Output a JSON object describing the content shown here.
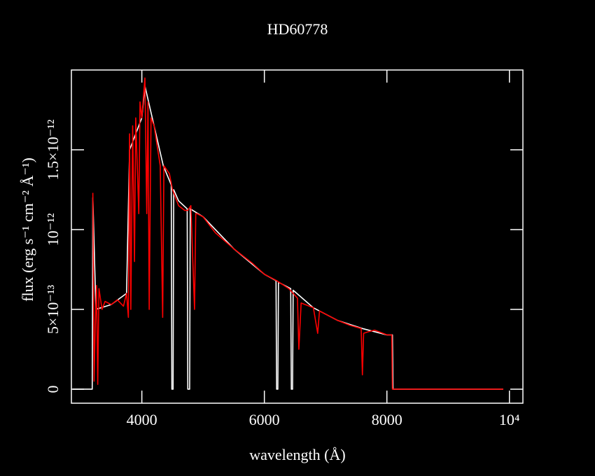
{
  "chart_data": {
    "type": "line",
    "title": "HD60778",
    "x_label": "wavelength (Å)",
    "y_label": "flux (erg s⁻¹ cm⁻² Å⁻¹)",
    "xlim": [
      2850,
      10220
    ],
    "ylim": [
      -8.8e-14,
      2e-12
    ],
    "xticks": [
      4000,
      6000,
      8000,
      {
        "value": 10000,
        "label": "10⁴"
      }
    ],
    "yticks": [
      0,
      {
        "value": 5e-13,
        "label": "5×10⁻¹³"
      },
      {
        "value": 1e-12,
        "label": "10⁻¹²"
      },
      {
        "value": 1.5e-12,
        "label": "1.5×10⁻¹²"
      }
    ],
    "series": [
      {
        "color": "#ffffff",
        "x": [
          2870,
          3190,
          3200,
          3250,
          3500,
          3750,
          3800,
          3900,
          4000,
          4050,
          4200,
          4350,
          4480,
          4490,
          4510,
          4520,
          4600,
          4740,
          4750,
          4780,
          4790,
          5000,
          5500,
          6000,
          6190,
          6200,
          6220,
          6230,
          6430,
          6440,
          6460,
          6470,
          6800,
          7200,
          7600,
          8000,
          8090,
          8100,
          9900
        ],
        "values": [
          0,
          0,
          1.2e-12,
          5e-13,
          5.3e-13,
          6e-13,
          1.5e-12,
          1.6e-12,
          1.7e-12,
          1.9e-12,
          1.65e-12,
          1.4e-12,
          1.28e-12,
          0,
          0,
          1.25e-12,
          1.18e-12,
          1.13e-12,
          0,
          0,
          1.13e-12,
          1.08e-12,
          8.8e-13,
          7.2e-13,
          6.8e-13,
          0,
          0,
          6.7e-13,
          6.3e-13,
          0,
          0,
          6.2e-13,
          5.1e-13,
          4.3e-13,
          3.8e-13,
          3.4e-13,
          3.4e-13,
          0,
          0
        ]
      },
      {
        "color": "#ff0000",
        "x": [
          3200,
          3220,
          3240,
          3260,
          3280,
          3300,
          3350,
          3400,
          3500,
          3600,
          3700,
          3750,
          3780,
          3800,
          3820,
          3850,
          3880,
          3900,
          3950,
          3970,
          4000,
          4030,
          4050,
          4080,
          4100,
          4120,
          4150,
          4200,
          4300,
          4340,
          4360,
          4450,
          4500,
          4550,
          4600,
          4700,
          4750,
          4800,
          4860,
          4880,
          4900,
          5000,
          5200,
          5500,
          5800,
          6000,
          6200,
          6400,
          6540,
          6563,
          6600,
          6800,
          6870,
          6900,
          7200,
          7400,
          7580,
          7600,
          7620,
          7700,
          7800,
          8000,
          8080,
          8090,
          9900
        ],
        "values": [
          1.23e-12,
          5e-14,
          4e-13,
          6.5e-13,
          3e-14,
          6.3e-13,
          5e-13,
          5.5e-13,
          5.3e-13,
          5.6e-13,
          5.2e-13,
          6e-13,
          4.5e-13,
          1.6e-12,
          5e-13,
          1.65e-12,
          8e-13,
          1.7e-12,
          1.1e-12,
          1.8e-12,
          1.7e-12,
          1.85e-12,
          1.95e-12,
          1.1e-12,
          1.8e-12,
          5e-13,
          1.7e-12,
          1.65e-12,
          1.4e-12,
          4.5e-13,
          1.4e-12,
          1.35e-12,
          1.25e-12,
          1.2e-12,
          1.15e-12,
          1.12e-12,
          1.12e-12,
          1.15e-12,
          5e-13,
          1.1e-12,
          1.1e-12,
          1.08e-12,
          9.8e-13,
          8.8e-13,
          7.9e-13,
          7.2e-13,
          6.8e-13,
          6.3e-13,
          5.7e-13,
          2.5e-13,
          5.4e-13,
          5.1e-13,
          3.5e-13,
          4.9e-13,
          4.3e-13,
          4e-13,
          3.8e-13,
          9e-14,
          3.5e-13,
          3.6e-13,
          3.7e-13,
          3.4e-13,
          3.4e-13,
          0,
          0
        ]
      }
    ]
  }
}
